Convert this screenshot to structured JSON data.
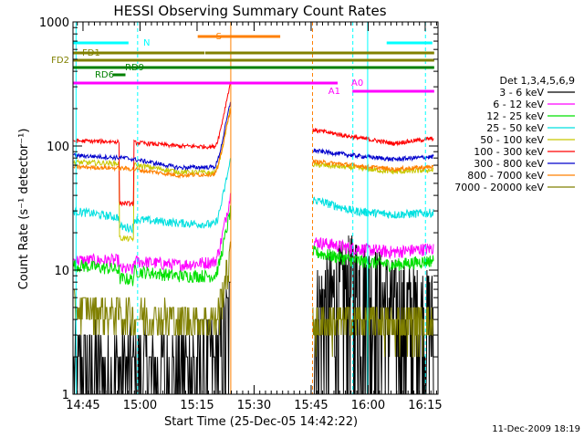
{
  "chart_data": {
    "type": "line",
    "title": "HESSI Observing Summary Count Rates",
    "xlabel": "Start Time (25-Dec-05 14:42:22)",
    "ylabel": "Count Rate (s⁻¹ detector⁻¹)",
    "y_scale": "log",
    "ylim": [
      1,
      1000
    ],
    "xlim_minutes_since_start": [
      0,
      96
    ],
    "x_ticks": [
      {
        "t": 2.63,
        "label": "14:45"
      },
      {
        "t": 17.63,
        "label": "15:00"
      },
      {
        "t": 32.63,
        "label": "15:15"
      },
      {
        "t": 47.63,
        "label": "15:30"
      },
      {
        "t": 62.63,
        "label": "15:45"
      },
      {
        "t": 77.63,
        "label": "16:00"
      },
      {
        "t": 92.63,
        "label": "16:15"
      }
    ],
    "y_ticks": [
      {
        "v": 1,
        "label": "1"
      },
      {
        "v": 10,
        "label": "10"
      },
      {
        "v": 100,
        "label": "100"
      },
      {
        "v": 1000,
        "label": "1000"
      }
    ],
    "legend_header": "Det 1,3,4,5,6,9",
    "legend_position": "right",
    "series": [
      {
        "name": "3 - 6 keV",
        "color": "#000000",
        "pre": [
          1.5,
          1.5,
          1.5,
          1.8
        ],
        "post": [
          4,
          8,
          5,
          4
        ],
        "noise": 0.6
      },
      {
        "name": "6 - 12 keV",
        "color": "#ff00ff",
        "pre": [
          12,
          12,
          11,
          12
        ],
        "post": [
          17,
          15,
          14,
          15
        ],
        "noise": 0.12
      },
      {
        "name": "12 - 25 keV",
        "color": "#00e000",
        "pre": [
          11,
          10,
          9,
          9
        ],
        "post": [
          14,
          12,
          11,
          12
        ],
        "noise": 0.12
      },
      {
        "name": "25 - 50 keV",
        "color": "#00e0e0",
        "pre": [
          30,
          26,
          24,
          23
        ],
        "post": [
          37,
          30,
          28,
          29
        ],
        "noise": 0.08
      },
      {
        "name": "50 - 100 keV",
        "color": "#c8c800",
        "pre": [
          74,
          72,
          62,
          60
        ],
        "post": [
          71,
          67,
          62,
          64
        ],
        "noise": 0.05
      },
      {
        "name": "100 - 300 keV",
        "color": "#ff0000",
        "pre": [
          110,
          108,
          100,
          98
        ],
        "post": [
          135,
          118,
          105,
          115
        ],
        "noise": 0.04
      },
      {
        "name": "300 - 800 keV",
        "color": "#0000cc",
        "pre": [
          84,
          80,
          67,
          68
        ],
        "post": [
          92,
          84,
          78,
          82
        ],
        "noise": 0.04
      },
      {
        "name": "800 - 7000 keV",
        "color": "#ff8000",
        "pre": [
          68,
          66,
          58,
          60
        ],
        "post": [
          75,
          70,
          65,
          68
        ],
        "noise": 0.04
      },
      {
        "name": "7000 - 20000 keV",
        "color": "#808000",
        "pre": [
          5,
          4.5,
          4,
          4
        ],
        "post": [
          3.6,
          4,
          3.7,
          3.8
        ],
        "noise": 0.25
      }
    ],
    "flag_bars": [
      {
        "label": "N",
        "color": "#00ffff",
        "segments": [
          [
            0,
            14.6
          ],
          [
            82.5,
            94.5
          ]
        ]
      },
      {
        "label": "S",
        "color": "#ff8000",
        "segments": [
          [
            32.8,
            54.5
          ]
        ]
      },
      {
        "label": "FD1",
        "color": "#808000",
        "segments": [
          [
            0,
            34.6
          ],
          [
            34.8,
            95
          ]
        ]
      },
      {
        "label": "FD2",
        "color": "#808000",
        "segments": [
          [
            0,
            95
          ]
        ]
      },
      {
        "label": "RD9",
        "color": "#008000",
        "segments": [
          [
            0,
            95
          ]
        ]
      },
      {
        "label": "RD6",
        "color": "#008000",
        "segments": [
          [
            10.5,
            13.8
          ]
        ]
      },
      {
        "label": "A0",
        "color": "#ff00ff",
        "segments": [
          [
            0,
            69.6
          ]
        ]
      },
      {
        "label": "A1",
        "color": "#ff00ff",
        "segments": [
          [
            73.5,
            95
          ]
        ]
      }
    ],
    "markers": [
      {
        "t": 0.8,
        "color": "#00ffff",
        "style": "solid"
      },
      {
        "t": 17.0,
        "color": "#00ffff",
        "style": "dashed"
      },
      {
        "t": 41.5,
        "color": "#ff8000",
        "style": "solid"
      },
      {
        "t": 63.0,
        "color": "#ff8000",
        "style": "dashed"
      },
      {
        "t": 73.6,
        "color": "#00ffff",
        "style": "dashed"
      },
      {
        "t": 77.5,
        "color": "#00ffff",
        "style": "solid"
      },
      {
        "t": 92.7,
        "color": "#00ffff",
        "style": "dashed"
      }
    ],
    "data_gap": [
      41.5,
      63.0
    ],
    "attenuator_dip": [
      12.2,
      16.0
    ]
  },
  "footer": {
    "timestamp": "11-Dec-2009 18:19"
  }
}
